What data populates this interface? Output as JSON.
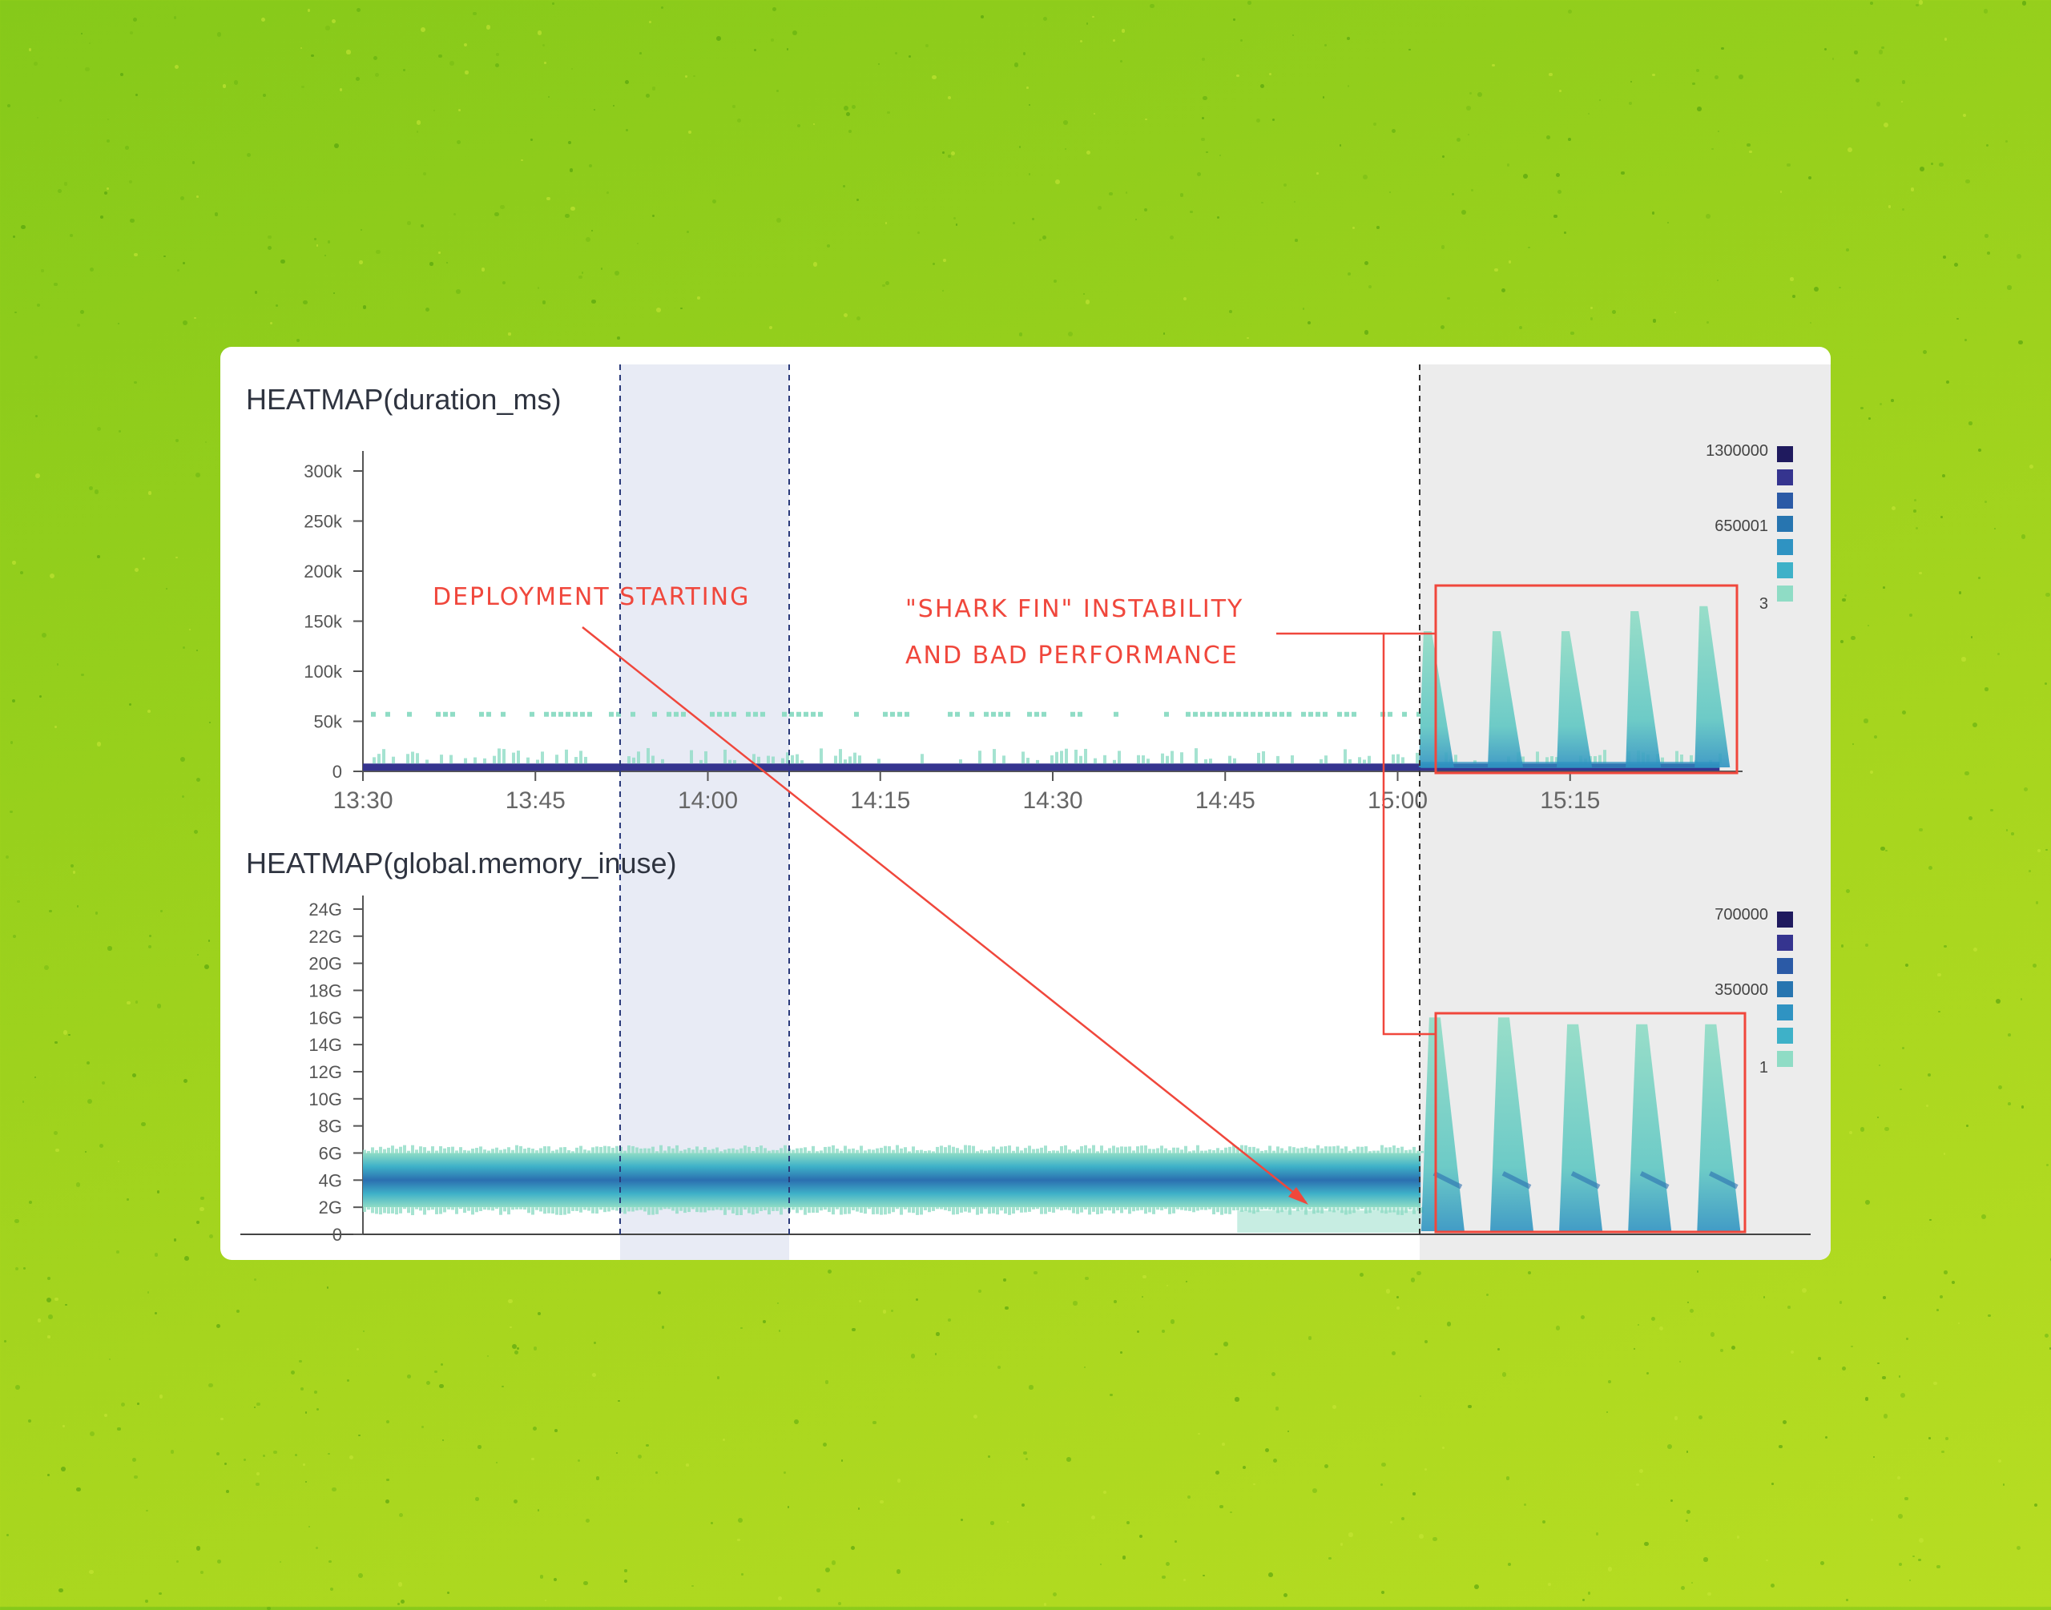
{
  "chart_data": [
    {
      "type": "heatmap",
      "title": "HEATMAP(duration_ms)",
      "x_tick_labels": [
        "13:30",
        "13:45",
        "14:00",
        "14:15",
        "14:30",
        "14:45",
        "15:00",
        "15:15"
      ],
      "x_range": [
        "13:30",
        "15:30"
      ],
      "y_tick_labels": [
        "0",
        "50k",
        "100k",
        "150k",
        "200k",
        "250k",
        "300k"
      ],
      "y_range": [
        0,
        320000
      ],
      "legend": {
        "labels": [
          "1300000",
          "650001",
          "3"
        ],
        "colors": [
          "#1f1a5e",
          "#35348f",
          "#2b5aa6",
          "#2775b0",
          "#2f93c2",
          "#3eb1c8",
          "#8fdcc5"
        ]
      },
      "bands": [
        {
          "name": "dense-low",
          "y": [
            0,
            3000
          ],
          "x": [
            "13:30",
            "15:28"
          ],
          "intensity": "high"
        },
        {
          "name": "sparse-50k",
          "y": [
            55000,
            60000
          ],
          "x": [
            "13:30",
            "15:00"
          ],
          "intensity": "low"
        }
      ],
      "spikes": [
        {
          "x": "15:04",
          "peak": 140000
        },
        {
          "x": "15:10",
          "peak": 140000
        },
        {
          "x": "15:16",
          "peak": 140000
        },
        {
          "x": "15:22",
          "peak": 160000
        },
        {
          "x": "15:28",
          "peak": 165000
        }
      ]
    },
    {
      "type": "heatmap",
      "title": "HEATMAP(global.memory_inuse)",
      "x_range": [
        "13:30",
        "15:30"
      ],
      "y_tick_labels": [
        "0",
        "2G",
        "4G",
        "6G",
        "8G",
        "10G",
        "12G",
        "14G",
        "16G",
        "18G",
        "20G",
        "22G",
        "24G"
      ],
      "y_range": [
        0,
        25
      ],
      "legend": {
        "labels": [
          "700000",
          "350000",
          "1"
        ],
        "colors": [
          "#1f1a5e",
          "#35348f",
          "#2b5aa6",
          "#2775b0",
          "#2f93c2",
          "#3eb1c8",
          "#8fdcc5"
        ]
      },
      "bands": [
        {
          "name": "steady-memory",
          "y": [
            2.5,
            5.5
          ],
          "center": 4,
          "x": [
            "13:30",
            "15:02"
          ],
          "intensity": "high"
        }
      ],
      "spikes": [
        {
          "x": "15:04",
          "peak": 16
        },
        {
          "x": "15:10",
          "peak": 16
        },
        {
          "x": "15:16",
          "peak": 15.5
        },
        {
          "x": "15:22",
          "peak": 15.5
        },
        {
          "x": "15:28",
          "peak": 15.5
        }
      ]
    }
  ],
  "markers": {
    "deployment_start": "13:52",
    "deployment_end": "14:04",
    "issue_start": "15:00"
  },
  "annotations": {
    "deployment": "DEPLOYMENT STARTING",
    "shark_line1": "\"SHARK FIN\" INSTABILITY",
    "shark_line2": "AND BAD PERFORMANCE"
  },
  "colors": {
    "annotation_red": "#f0473c",
    "highlight_blue": "#e8ebf5",
    "highlight_grey": "#ececec"
  }
}
